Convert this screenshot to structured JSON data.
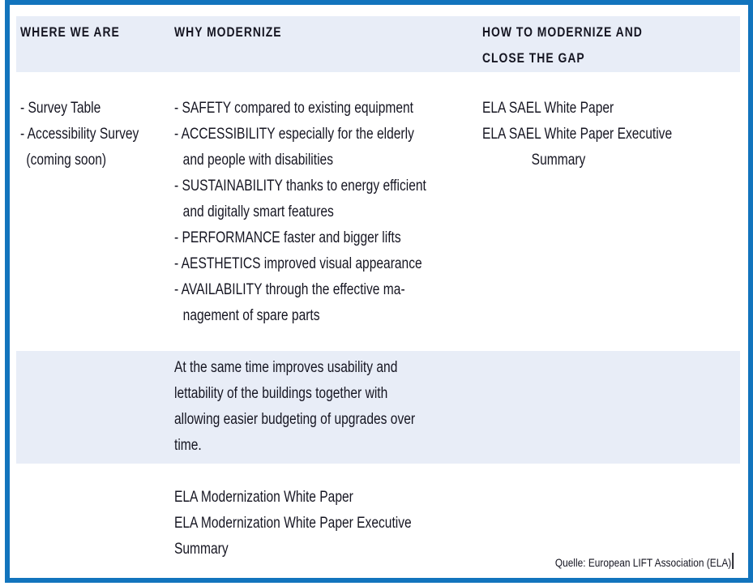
{
  "colors": {
    "frame_blue": "#1274bd",
    "band_background": "#e8edf7",
    "text": "#161622"
  },
  "header": {
    "col1": "WHERE WE ARE",
    "col2": "WHY MODERNIZE",
    "col3_line1": "HOW TO MODERNIZE AND",
    "col3_line2": "CLOSE THE GAP"
  },
  "where_we_are": {
    "lines": [
      "- Survey Table",
      "- Accessibility Survey",
      "(coming soon)"
    ]
  },
  "why_modernize": {
    "lines": [
      "- SAFETY compared to existing equipment",
      "- ACCESSIBILITY especially for the elderly",
      "and people with disabilities",
      "- SUSTAINABILITY thanks to energy efficient",
      "and digitally smart features",
      "- PERFORMANCE faster and bigger lifts",
      "- AESTHETICS improved visual appearance",
      "- AVAILABILITY through the effective ma-",
      "nagement of spare parts"
    ]
  },
  "how_to_modernize": {
    "lines": [
      "ELA SAEL White Paper",
      "ELA SAEL White Paper Executive",
      "Summary"
    ]
  },
  "highlight_paragraph": {
    "lines": [
      "At the same time improves usability and",
      "lettability of the buildings together with",
      "allowing easier budgeting of upgrades over",
      "time."
    ]
  },
  "bottom_papers": {
    "lines": [
      "ELA Modernization White Paper",
      "ELA Modernization White Paper Executive",
      "Summary"
    ]
  },
  "source": {
    "label": "Quelle: European LIFT Association (ELA)"
  }
}
